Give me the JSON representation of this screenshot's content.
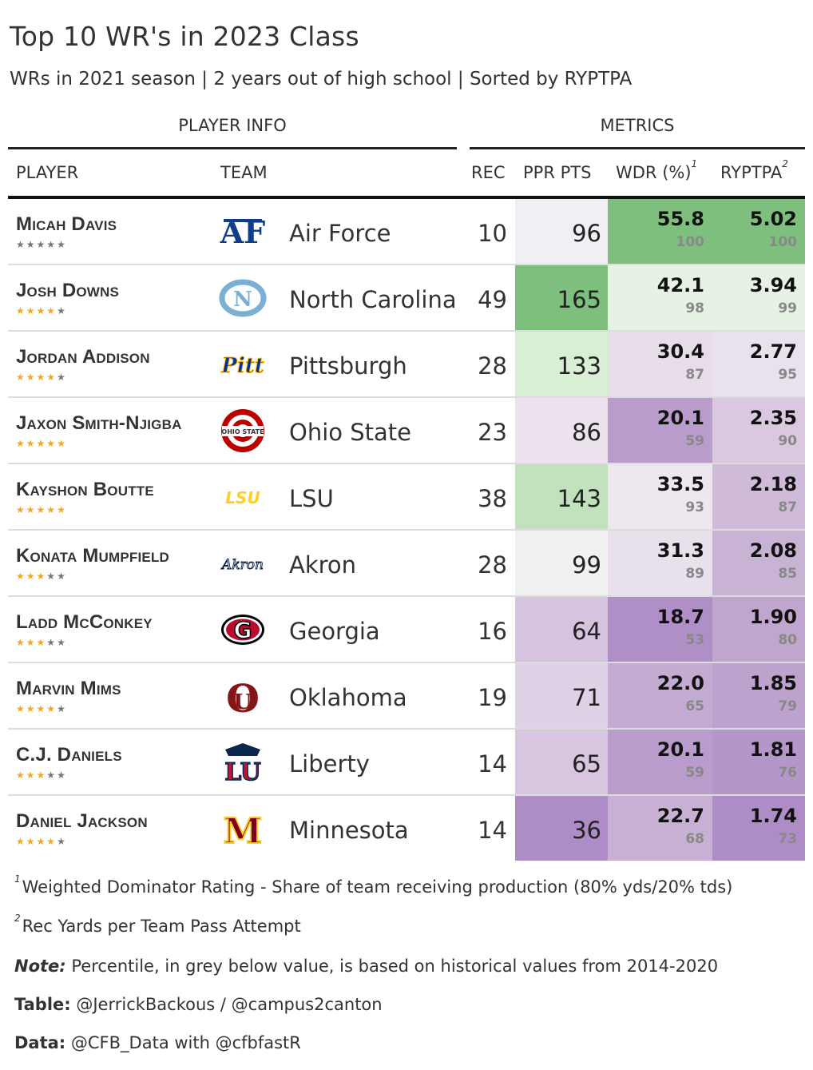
{
  "title": "Top 10 WR's in 2023 Class",
  "subtitle": "WRs in 2021 season | 2 years out of high school | Sorted by RYPTPA",
  "spanners": {
    "player_info": "PLAYER INFO",
    "metrics": "METRICS"
  },
  "columns": {
    "player": "PLAYER",
    "team": "TEAM",
    "rec": "REC",
    "ppr": "PPR PTS",
    "wdr": "WDR (%)",
    "wdr_note": "1",
    "ryptpa": "RYPTPA",
    "ryptpa_note": "2"
  },
  "rows": [
    {
      "player": "Micah Davis",
      "stars": 0,
      "team": "Air Force",
      "logo": "air-force-logo",
      "rec": "10",
      "ppr": "96",
      "wdr": "55.8",
      "wdr_pct": "100",
      "ryptpa": "5.02",
      "ryptpa_pct": "100",
      "ppr_color": "#f1eff3",
      "wdr_color": "#7ebf7e",
      "ryptpa_color": "#7ebf7e"
    },
    {
      "player": "Josh Downs",
      "stars": 4,
      "team": "North Carolina",
      "logo": "north-carolina-logo",
      "rec": "49",
      "ppr": "165",
      "wdr": "42.1",
      "wdr_pct": "98",
      "ryptpa": "3.94",
      "ryptpa_pct": "99",
      "ppr_color": "#7ebf7e",
      "wdr_color": "#e6f2e3",
      "ryptpa_color": "#e6f2e3"
    },
    {
      "player": "Jordan Addison",
      "stars": 4,
      "team": "Pittsburgh",
      "logo": "pittsburgh-logo",
      "rec": "28",
      "ppr": "133",
      "wdr": "30.4",
      "wdr_pct": "87",
      "ryptpa": "2.77",
      "ryptpa_pct": "95",
      "ppr_color": "#d9efd5",
      "wdr_color": "#e6dde9",
      "ryptpa_color": "#e9e2ec"
    },
    {
      "player": "Jaxon Smith-Njigba",
      "stars": 5,
      "team": "Ohio State",
      "logo": "ohio-state-logo",
      "rec": "23",
      "ppr": "86",
      "wdr": "20.1",
      "wdr_pct": "59",
      "ryptpa": "2.35",
      "ryptpa_pct": "90",
      "ppr_color": "#ede3ef",
      "wdr_color": "#b99ccc",
      "ryptpa_color": "#d9c8e0"
    },
    {
      "player": "Kayshon Boutte",
      "stars": 5,
      "team": "LSU",
      "logo": "lsu-logo",
      "rec": "38",
      "ppr": "143",
      "wdr": "33.5",
      "wdr_pct": "93",
      "ryptpa": "2.18",
      "ryptpa_pct": "87",
      "ppr_color": "#c2e2bd",
      "wdr_color": "#ede8f0",
      "ryptpa_color": "#cfbbd9"
    },
    {
      "player": "Konata Mumpfield",
      "stars": 3,
      "team": "Akron",
      "logo": "akron-logo",
      "rec": "28",
      "ppr": "99",
      "wdr": "31.3",
      "wdr_pct": "89",
      "ryptpa": "2.08",
      "ryptpa_pct": "85",
      "ppr_color": "#f2f1f2",
      "wdr_color": "#e8e0eb",
      "ryptpa_color": "#c9b3d5"
    },
    {
      "player": "Ladd McConkey",
      "stars": 3,
      "team": "Georgia",
      "logo": "georgia-logo",
      "rec": "16",
      "ppr": "64",
      "wdr": "18.7",
      "wdr_pct": "53",
      "ryptpa": "1.90",
      "ryptpa_pct": "80",
      "ppr_color": "#d6c3df",
      "wdr_color": "#b08ec6",
      "ryptpa_color": "#c0a6cf"
    },
    {
      "player": "Marvin Mims",
      "stars": 4,
      "team": "Oklahoma",
      "logo": "oklahoma-logo",
      "rec": "19",
      "ppr": "71",
      "wdr": "22.0",
      "wdr_pct": "65",
      "ryptpa": "1.85",
      "ryptpa_pct": "79",
      "ppr_color": "#e0d2e6",
      "wdr_color": "#c4abd2",
      "ryptpa_color": "#bda2cd"
    },
    {
      "player": "C.J. Daniels",
      "stars": 3,
      "team": "Liberty",
      "logo": "liberty-logo",
      "rec": "14",
      "ppr": "65",
      "wdr": "20.1",
      "wdr_pct": "59",
      "ryptpa": "1.81",
      "ryptpa_pct": "76",
      "ppr_color": "#d8c6e0",
      "wdr_color": "#b99ccc",
      "ryptpa_color": "#b596c8"
    },
    {
      "player": "Daniel Jackson",
      "stars": 4,
      "team": "Minnesota",
      "logo": "minnesota-logo",
      "rec": "14",
      "ppr": "36",
      "wdr": "22.7",
      "wdr_pct": "68",
      "ryptpa": "1.74",
      "ryptpa_pct": "73",
      "ppr_color": "#ae8cc5",
      "wdr_color": "#c8b0d4",
      "ryptpa_color": "#ae8cc5"
    }
  ],
  "footnotes": {
    "note1_mark": "1",
    "note1": "Weighted Dominator Rating - Share of team receiving production (80% yds/20% tds)",
    "note2_mark": "2",
    "note2": "Rec Yards per Team Pass Attempt",
    "note_label": "Note:",
    "note_text": " Percentile, in grey below value, is based on historical values from 2014-2020",
    "table_label": "Table:",
    "table_text": " @JerrickBackous / @campus2canton",
    "data_label": "Data:",
    "data_text": " @CFB_Data with @cfbfastR"
  },
  "logo_text": {
    "pittsburgh": "Pitt",
    "lsu": "LSU",
    "akron": "Akron",
    "ohio_state": "OHIO STATE"
  },
  "colors": {
    "star_on": "#f5a623",
    "star_off": "#777777",
    "green_high": "#7ebf7e",
    "purple_low": "#ae8cc5"
  }
}
